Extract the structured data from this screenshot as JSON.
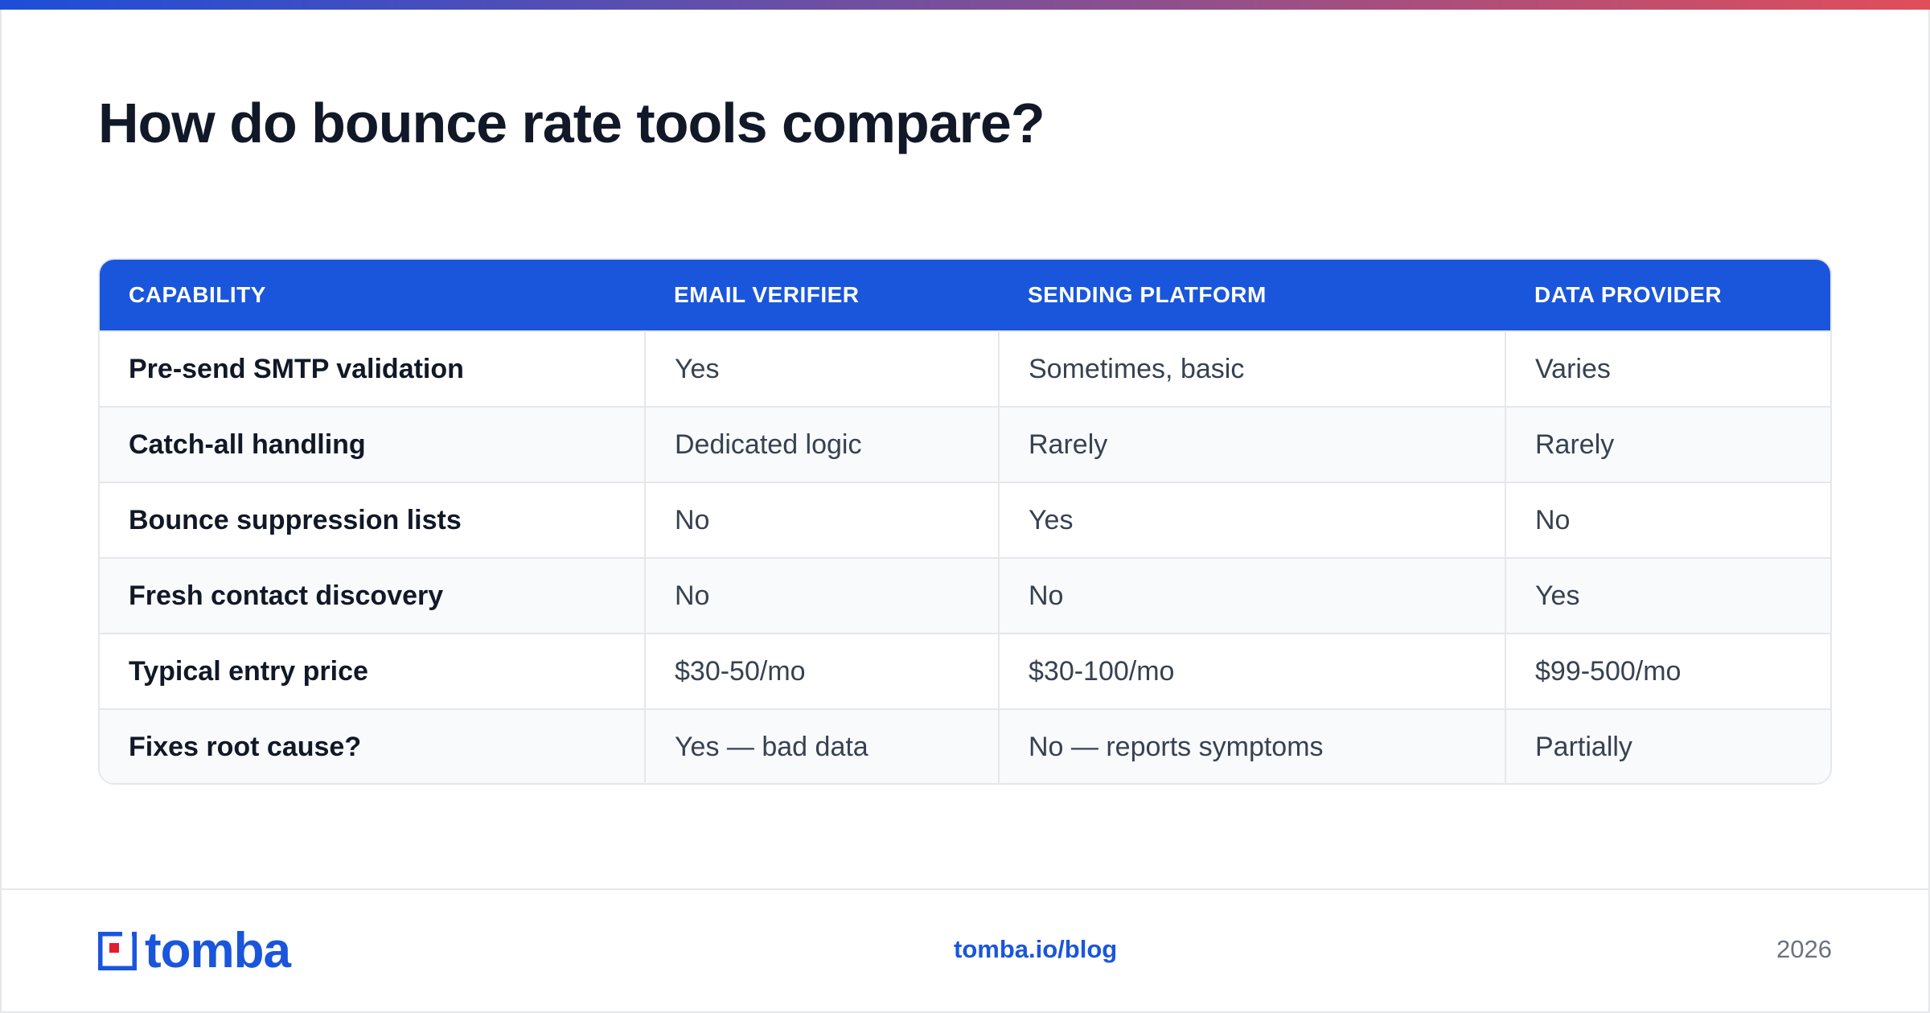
{
  "page": {
    "title": "How do bounce rate tools compare?"
  },
  "table": {
    "headers": [
      "CAPABILITY",
      "EMAIL VERIFIER",
      "SENDING PLATFORM",
      "DATA PROVIDER"
    ],
    "rows": [
      [
        "Pre-send SMTP validation",
        "Yes",
        "Sometimes, basic",
        "Varies"
      ],
      [
        "Catch-all handling",
        "Dedicated logic",
        "Rarely",
        "Rarely"
      ],
      [
        "Bounce suppression lists",
        "No",
        "Yes",
        "No"
      ],
      [
        "Fresh contact discovery",
        "No",
        "No",
        "Yes"
      ],
      [
        "Typical entry price",
        "$30-50/mo",
        "$30-100/mo",
        "$99-500/mo"
      ],
      [
        "Fixes root cause?",
        "Yes — bad data",
        "No — reports symptoms",
        "Partially"
      ]
    ]
  },
  "footer": {
    "brand": "tomba",
    "link": "tomba.io/blog",
    "year": "2026"
  },
  "colors": {
    "accent": "#1a56db",
    "logo_red": "#e11d2e",
    "title": "#111827"
  }
}
